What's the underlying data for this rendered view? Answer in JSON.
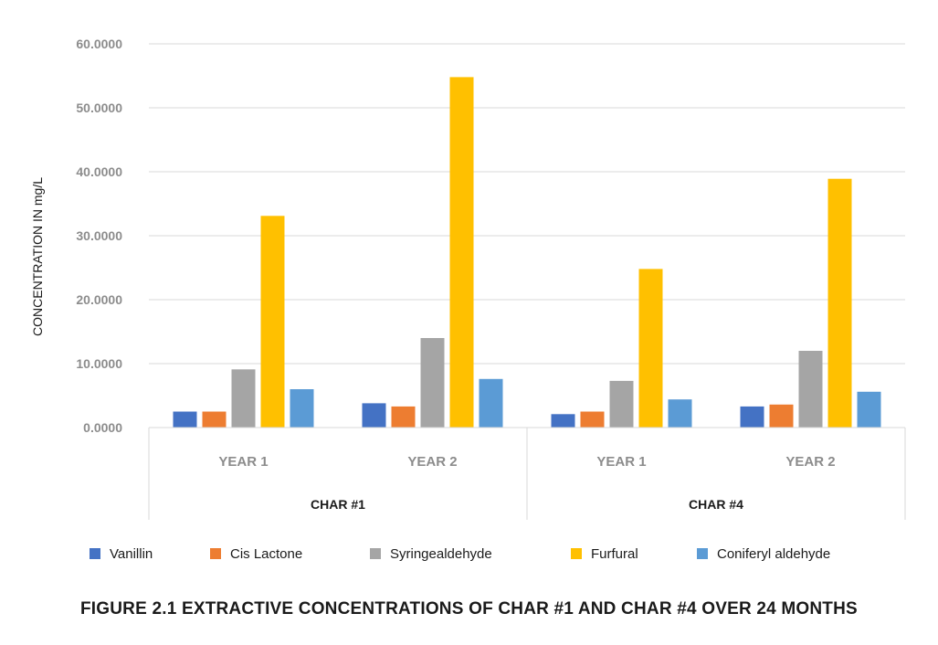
{
  "chart_data": {
    "type": "bar",
    "title": "",
    "xlabel": "",
    "ylabel": "CONCENTRATION IN mg/L",
    "ylim": [
      0,
      60
    ],
    "yticks": [
      "0.0000",
      "10.0000",
      "20.0000",
      "30.0000",
      "40.0000",
      "50.0000",
      "60.0000"
    ],
    "ytick_values": [
      0,
      10,
      20,
      30,
      40,
      50,
      60
    ],
    "grid": true,
    "legend_position": "bottom",
    "groups": [
      {
        "label": "CHAR #1",
        "categories": [
          "YEAR 1",
          "YEAR 2"
        ]
      },
      {
        "label": "CHAR #4",
        "categories": [
          "YEAR 1",
          "YEAR 2"
        ]
      }
    ],
    "categories": [
      "CHAR #1 YEAR 1",
      "CHAR #1 YEAR 2",
      "CHAR #4 YEAR 1",
      "CHAR #4 YEAR 2"
    ],
    "series": [
      {
        "name": "Vanillin",
        "color": "#4472c4",
        "values": [
          2.5,
          3.8,
          2.1,
          3.3
        ]
      },
      {
        "name": "Cis Lactone",
        "color": "#ed7d31",
        "values": [
          2.5,
          3.3,
          2.5,
          3.6
        ]
      },
      {
        "name": "Syringealdehyde",
        "color": "#a5a5a5",
        "values": [
          9.1,
          14.0,
          7.3,
          12.0
        ]
      },
      {
        "name": "Furfural",
        "color": "#ffc000",
        "values": [
          33.1,
          54.8,
          24.8,
          38.9
        ]
      },
      {
        "name": "Coniferyl aldehyde",
        "color": "#5b9bd5",
        "values": [
          6.0,
          7.6,
          4.4,
          5.6
        ]
      }
    ]
  },
  "caption": "FIGURE 2.1  EXTRACTIVE CONCENTRATIONS OF CHAR #1 AND CHAR #4 OVER 24 MONTHS"
}
